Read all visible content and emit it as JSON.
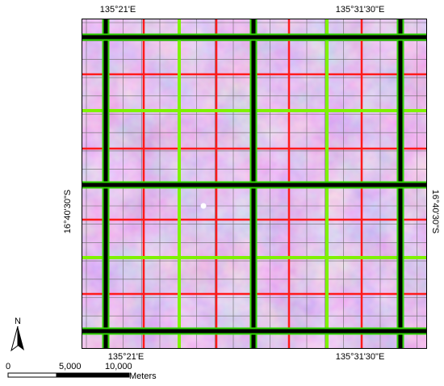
{
  "graticule": {
    "top": [
      "135°21'E",
      "135°31'30\"E"
    ],
    "bottom": [
      "135°21'E",
      "135°31'30\"E"
    ],
    "left": "16°40'30\"S",
    "right": "16°40'30\"S"
  },
  "north_arrow": {
    "label": "N"
  },
  "scale_bar": {
    "labels": [
      "0",
      "5,000",
      "10,000"
    ],
    "unit": "Meters"
  },
  "colors": {
    "thick_grid": "#000000",
    "thick_grid_halo": "#2fd400",
    "green_grid": "#7ef100",
    "red_grid": "#ff1a1a",
    "fine_grid": "#6b6b6b",
    "terrain_base": "#b38fd6",
    "point_marker": "#ffffff"
  }
}
